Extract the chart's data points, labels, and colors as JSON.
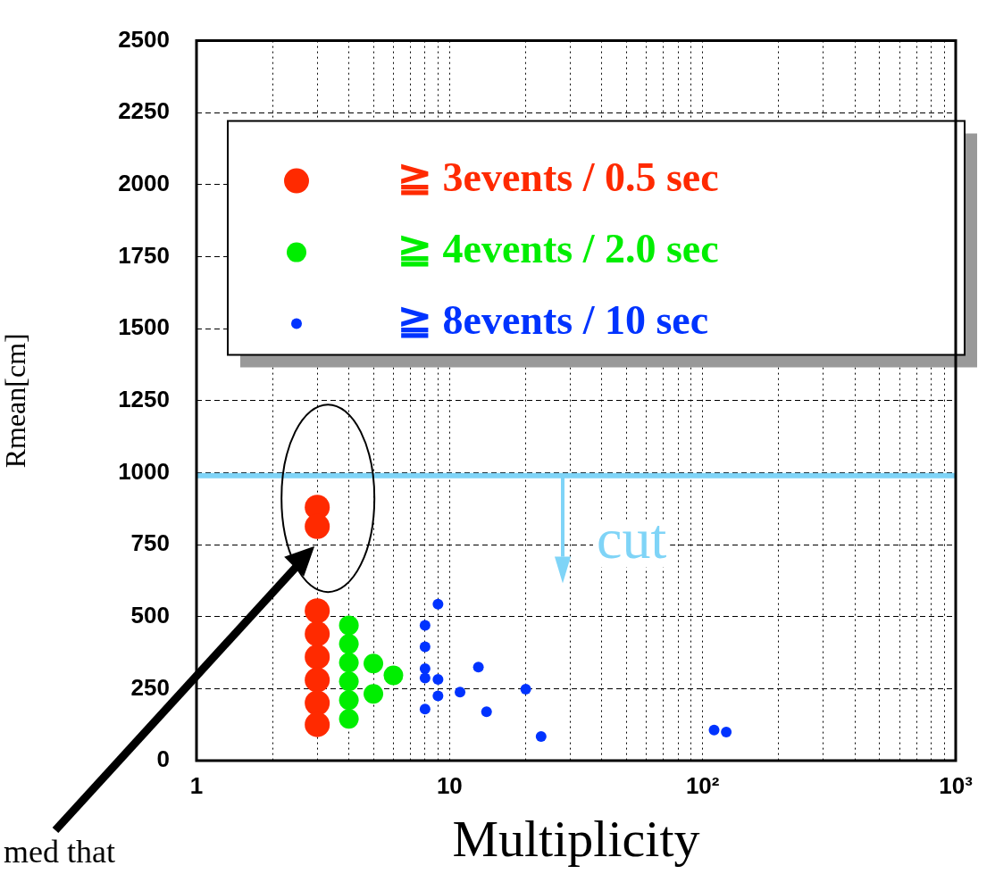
{
  "chart_data": {
    "type": "scatter",
    "xlabel": "Multiplicity",
    "ylabel": "Rmean[cm]",
    "log": "x",
    "grid": true,
    "legend": "top",
    "marker": "circle",
    "xlim": [
      1,
      1000
    ],
    "ylim": [
      0,
      2500
    ],
    "xticks": [
      1,
      {
        "value": 2,
        "label": null
      },
      {
        "value": 3,
        "label": null
      },
      {
        "value": 4,
        "label": null
      },
      {
        "value": 5,
        "label": null
      },
      {
        "value": 6,
        "label": null
      },
      {
        "value": 7,
        "label": null
      },
      {
        "value": 8,
        "label": null
      },
      {
        "value": 9,
        "label": null
      },
      10,
      {
        "value": 20,
        "label": null
      },
      {
        "value": 30,
        "label": null
      },
      {
        "value": 40,
        "label": null
      },
      {
        "value": 50,
        "label": null
      },
      {
        "value": 60,
        "label": null
      },
      {
        "value": 70,
        "label": null
      },
      {
        "value": 80,
        "label": null
      },
      {
        "value": 90,
        "label": null
      },
      {
        "value": 100,
        "label": "10²"
      },
      {
        "value": 200,
        "label": null
      },
      {
        "value": 300,
        "label": null
      },
      {
        "value": 400,
        "label": null
      },
      {
        "value": 500,
        "label": null
      },
      {
        "value": 600,
        "label": null
      },
      {
        "value": 700,
        "label": null
      },
      {
        "value": 800,
        "label": null
      },
      {
        "value": 900,
        "label": null
      },
      {
        "value": 1000,
        "label": "10³"
      }
    ],
    "yticks": [
      0,
      250,
      500,
      750,
      1000,
      1250,
      1500,
      1750,
      2000,
      2250,
      2500
    ],
    "series": [
      {
        "name": "≧ 3events / 0.5 sec",
        "color": "#ff2a00",
        "x": [
          3,
          3,
          3,
          3,
          3,
          3,
          3,
          3
        ],
        "values": [
          880,
          813,
          520,
          440,
          360,
          280,
          200,
          125
        ]
      },
      {
        "name": "≧ 4events / 2.0 sec",
        "color": "#00ee00",
        "x": [
          4,
          4,
          4,
          4,
          4,
          4,
          5,
          5,
          6
        ],
        "values": [
          470,
          405,
          340,
          275,
          210,
          145,
          337,
          232,
          296
        ]
      },
      {
        "name": "≧ 8events / 10 sec",
        "color": "#0033ff",
        "x": [
          9,
          8,
          8,
          8,
          8,
          9,
          9,
          8,
          11,
          13,
          14,
          20,
          23,
          111,
          124
        ],
        "values": [
          543,
          470,
          395,
          319,
          287,
          282,
          225,
          179,
          238,
          325,
          170,
          248,
          84,
          106,
          99
        ]
      }
    ],
    "ref_lines": [
      {
        "axis": "y",
        "value": 990,
        "color": "#7fd4f7"
      }
    ],
    "annotations": [
      "cut",
      "med that"
    ]
  }
}
